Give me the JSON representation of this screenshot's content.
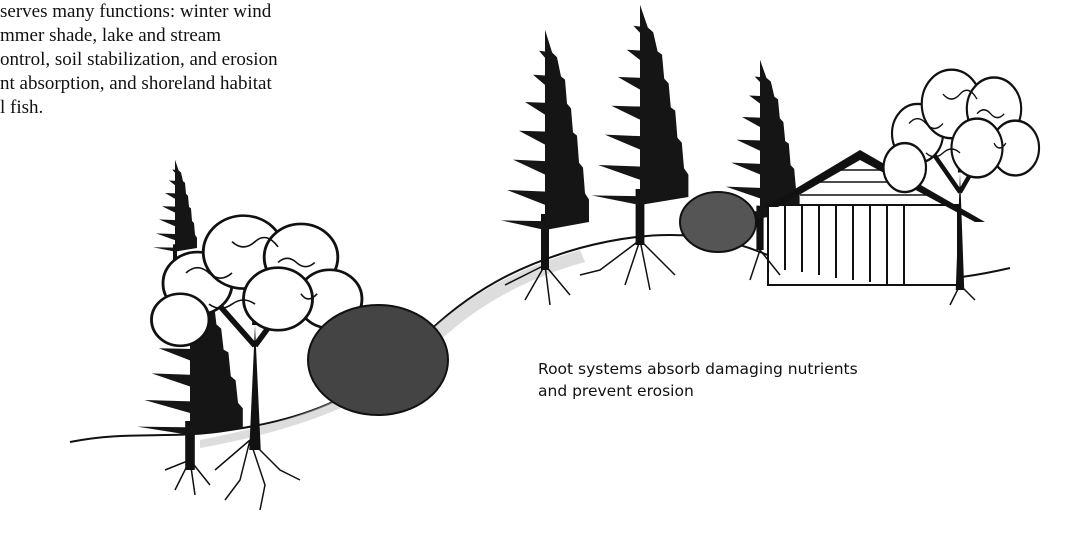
{
  "intro_text": {
    "lines": [
      "serves many functions: winter wind",
      "mmer shade, lake and stream",
      "ontrol, soil stabilization, and erosion",
      "nt absorption, and shoreland habitat",
      "l fish."
    ]
  },
  "caption": {
    "lines": [
      "Root systems absorb damaging nutrients",
      "and prevent erosion"
    ]
  }
}
